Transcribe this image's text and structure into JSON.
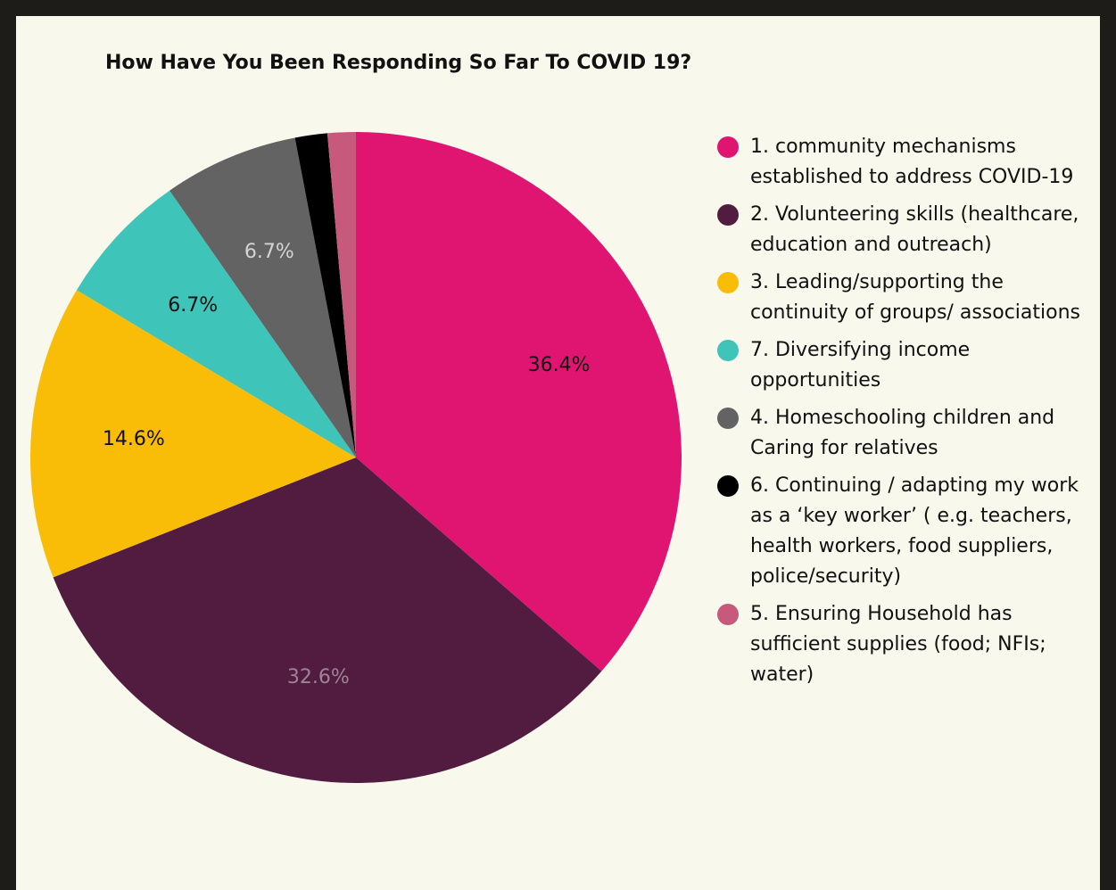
{
  "colors": {
    "frame": "#1d1c18",
    "panel": "#f8f8ed"
  },
  "chart_data": {
    "type": "pie",
    "title": "How Have You Been Responding So Far To COVID 19?",
    "legend_position": "right",
    "slices": [
      {
        "label": "1. community mechanisms established to address COVID-19",
        "value": 36.4,
        "display": "36.4%",
        "color": "#e01471",
        "label_color": "#111111"
      },
      {
        "label": "2. Volunteering skills (healthcare, education and outreach)",
        "value": 32.6,
        "display": "32.6%",
        "color": "#521c41",
        "label_color": "#9c8494"
      },
      {
        "label": "3. Leading/supporting the continuity of groups/ associations",
        "value": 14.6,
        "display": "14.6%",
        "color": "#f9bd08",
        "label_color": "#111111"
      },
      {
        "label": "7. Diversifying income opportunities",
        "value": 6.7,
        "display": "6.7%",
        "color": "#3ec4b8",
        "label_color": "#111111"
      },
      {
        "label": "4. Homeschooling children and Caring for relatives",
        "value": 6.7,
        "display": "6.7%",
        "color": "#636363",
        "label_color": "#d4d4d4"
      },
      {
        "label": "6. Continuing / adapting my work as a ‘key worker’ ( e.g. teachers, health workers, food suppliers, police/security)",
        "value": 1.6,
        "display": "",
        "color": "#000000",
        "label_color": "#111111"
      },
      {
        "label": "5. Ensuring Household has sufficient supplies (food; NFIs; water)",
        "value": 1.4,
        "display": "",
        "color": "#c75a7c",
        "label_color": "#111111"
      }
    ]
  }
}
